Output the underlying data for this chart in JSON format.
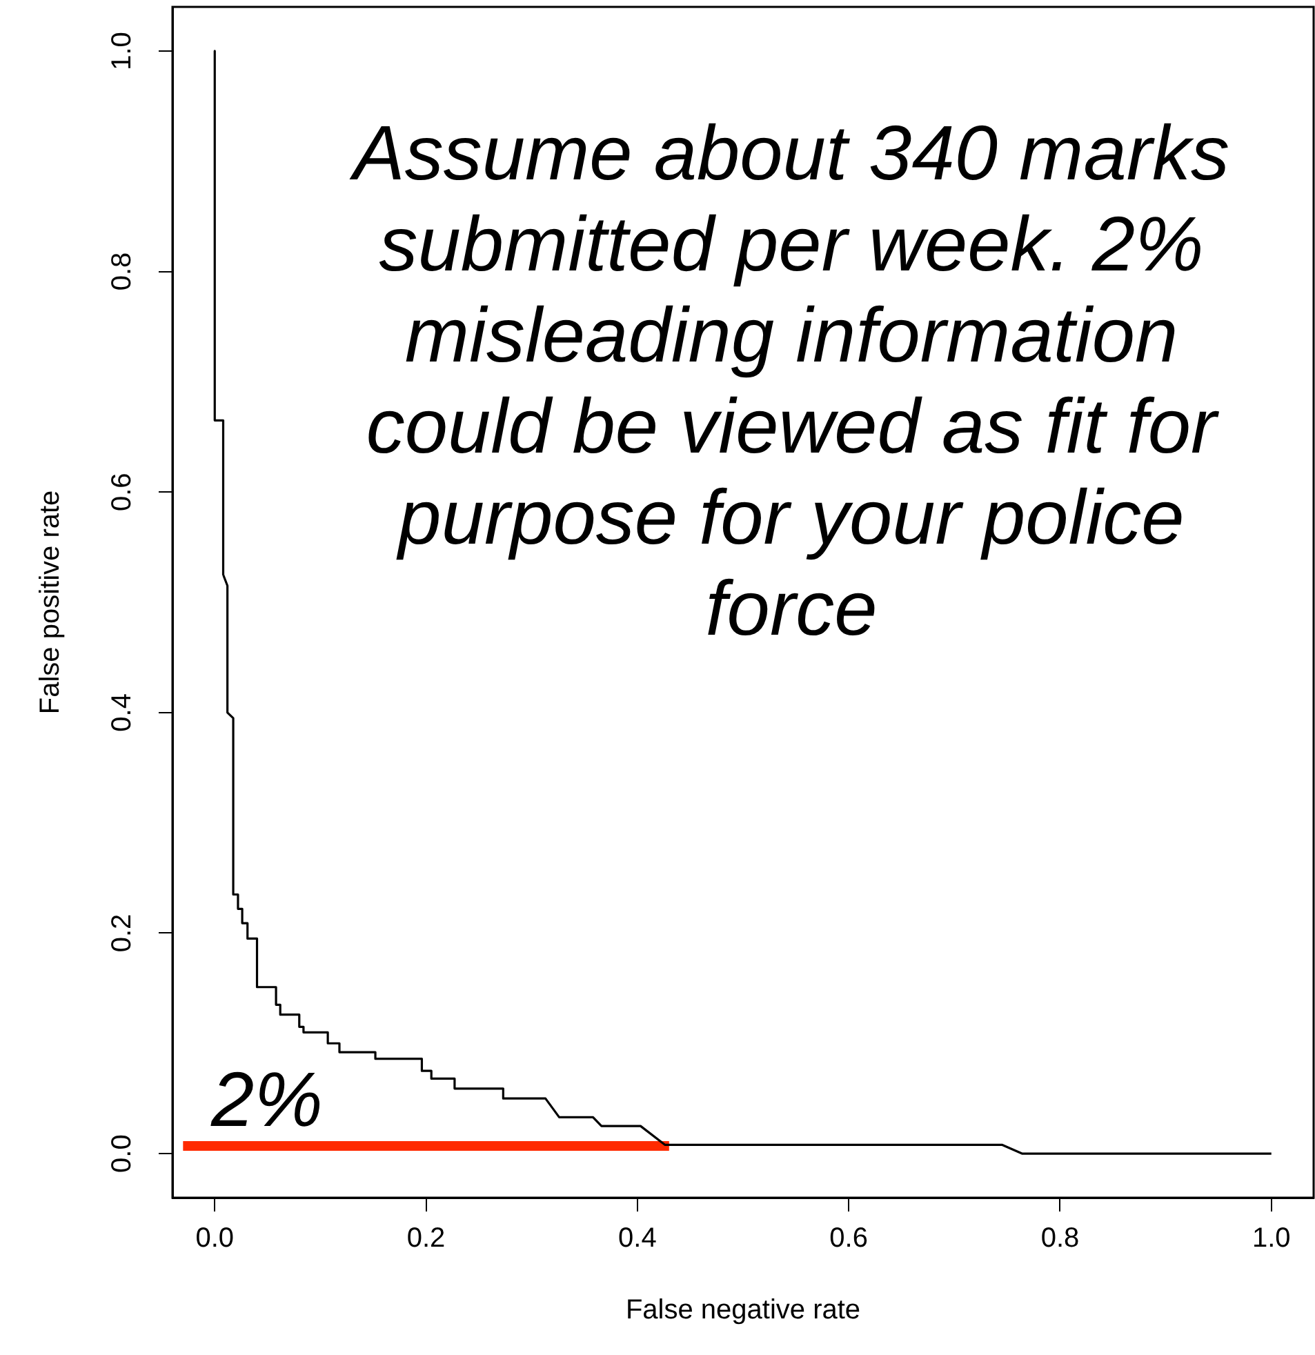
{
  "chart_data": {
    "type": "line",
    "xlabel": "False negative rate",
    "ylabel": "False positive rate",
    "xlim": [
      -0.04,
      1.04
    ],
    "ylim": [
      -0.04,
      1.04
    ],
    "xticks": [
      {
        "value": 0,
        "label": "0.0"
      },
      {
        "value": 0.2,
        "label": "0.2"
      },
      {
        "value": 0.4,
        "label": "0.4"
      },
      {
        "value": 0.6,
        "label": "0.6"
      },
      {
        "value": 0.8,
        "label": "0.8"
      },
      {
        "value": 1,
        "label": "1.0"
      }
    ],
    "yticks": [
      {
        "value": 0,
        "label": "0.0"
      },
      {
        "value": 0.2,
        "label": "0.2"
      },
      {
        "value": 0.4,
        "label": "0.4"
      },
      {
        "value": 0.6,
        "label": "0.6"
      },
      {
        "value": 0.8,
        "label": "0.8"
      },
      {
        "value": 1,
        "label": "1.0"
      }
    ],
    "grid": false,
    "legend": false,
    "marker": "none",
    "series": [
      {
        "color": "#000000",
        "x": [
          0,
          0,
          0.008,
          0.008,
          0.012,
          0.012,
          0.0175,
          0.0175,
          0.022,
          0.022,
          0.026,
          0.026,
          0.031,
          0.031,
          0.04,
          0.04,
          0.058,
          0.058,
          0.062,
          0.062,
          0.08,
          0.08,
          0.084,
          0.084,
          0.107,
          0.107,
          0.118,
          0.118,
          0.152,
          0.152,
          0.196,
          0.196,
          0.205,
          0.205,
          0.227,
          0.227,
          0.273,
          0.273,
          0.313,
          0.326,
          0.358,
          0.366,
          0.403,
          0.426,
          0.745,
          0.764,
          1.0
        ],
        "values": [
          1,
          0.665,
          0.665,
          0.525,
          0.515,
          0.4,
          0.395,
          0.235,
          0.235,
          0.222,
          0.222,
          0.209,
          0.209,
          0.195,
          0.195,
          0.151,
          0.151,
          0.135,
          0.135,
          0.126,
          0.126,
          0.115,
          0.115,
          0.11,
          0.11,
          0.1,
          0.1,
          0.092,
          0.092,
          0.086,
          0.086,
          0.075,
          0.075,
          0.068,
          0.068,
          0.059,
          0.059,
          0.05,
          0.05,
          0.033,
          0.033,
          0.025,
          0.025,
          0.008,
          0.008,
          0,
          0
        ]
      },
      {
        "color": "#ff2a00",
        "x": [
          -0.03,
          0.43
        ],
        "values": [
          0.007,
          0.007
        ]
      }
    ],
    "annotations": [
      "Assume about 340 marks submitted per week. 2% misleading information could be viewed as fit for purpose for your police force",
      "2%"
    ]
  }
}
